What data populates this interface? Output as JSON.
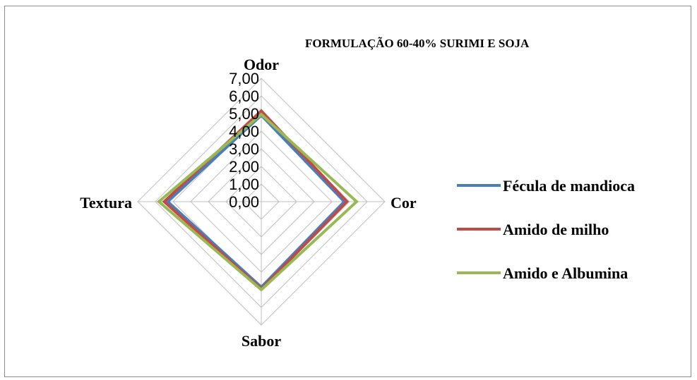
{
  "chart_data": {
    "type": "radar",
    "title": "FORMULAÇÃO 60-40% SURIMI E SOJA",
    "axes": [
      "Odor",
      "Cor",
      "Sabor",
      "Textura"
    ],
    "rlim": [
      0,
      7
    ],
    "r_ticks": [
      0,
      1,
      2,
      3,
      4,
      5,
      6,
      7
    ],
    "r_tick_labels": [
      "0,00",
      "1,00",
      "2,00",
      "3,00",
      "4,00",
      "5,00",
      "6,00",
      "7,00"
    ],
    "grid": true,
    "legend_position": "right",
    "series": [
      {
        "name": "Fécula de mandioca",
        "color": "#4a7ebb",
        "values": [
          4.9,
          4.7,
          4.85,
          5.3
        ]
      },
      {
        "name": "Amido de milho",
        "color": "#be4b48",
        "values": [
          5.15,
          4.85,
          4.95,
          5.5
        ]
      },
      {
        "name": "Amido e Albumina",
        "color": "#98b954",
        "values": [
          4.95,
          5.4,
          5.0,
          5.8
        ]
      }
    ]
  }
}
